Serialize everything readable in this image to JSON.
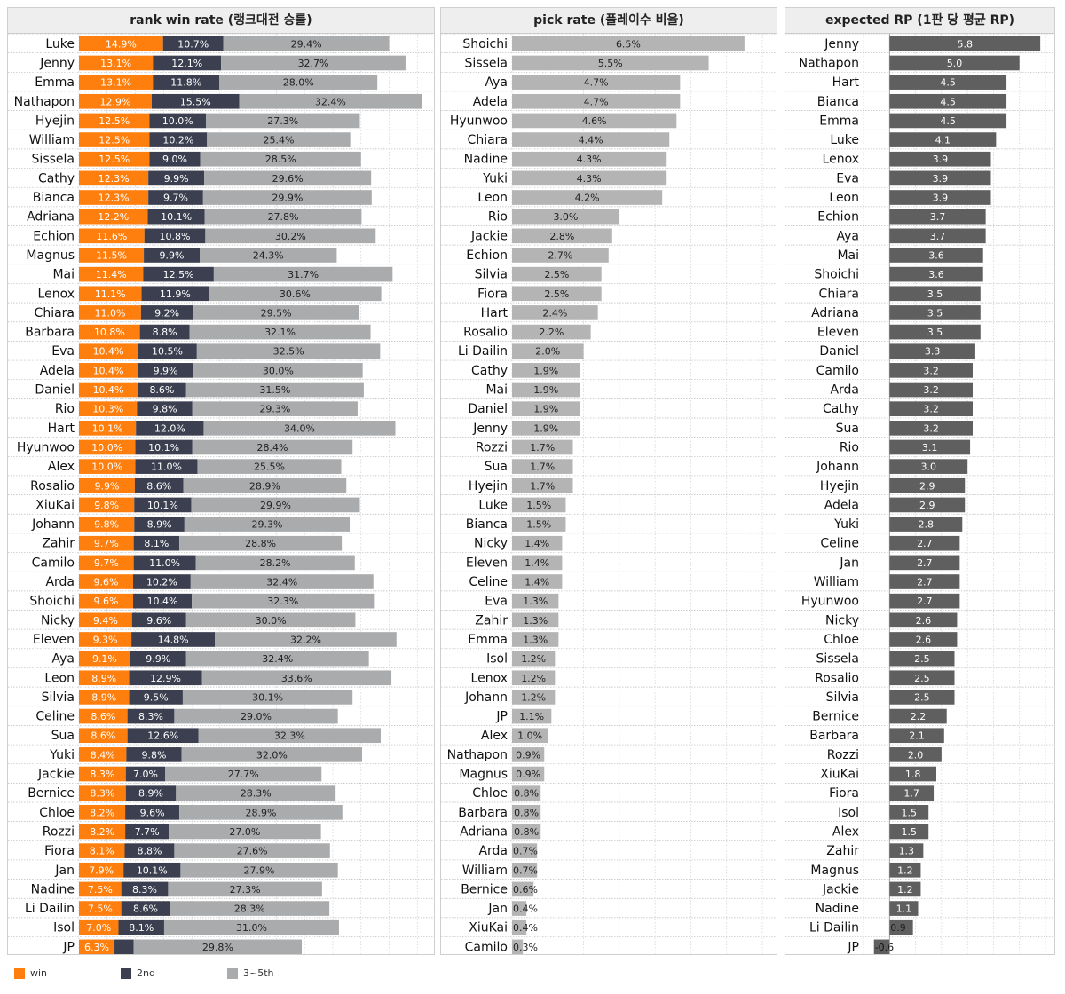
{
  "colors": {
    "win": "#ff7f0e",
    "second": "#3b3f4f",
    "third": "#a9abad",
    "pick": "#b4b4b4",
    "rp": "#5f5f5f"
  },
  "legend": {
    "win": "win",
    "second": "2nd",
    "third": "3~5th"
  },
  "chart_data": [
    {
      "type": "bar",
      "stacked": true,
      "title": "rank win rate (랭크대전 승률)",
      "categories": [
        "Luke",
        "Jenny",
        "Emma",
        "Nathapon",
        "Hyejin",
        "William",
        "Sissela",
        "Cathy",
        "Bianca",
        "Adriana",
        "Echion",
        "Magnus",
        "Mai",
        "Lenox",
        "Chiara",
        "Barbara",
        "Eva",
        "Adela",
        "Daniel",
        "Rio",
        "Hart",
        "Hyunwoo",
        "Alex",
        "Rosalio",
        "XiuKai",
        "Johann",
        "Zahir",
        "Camilo",
        "Arda",
        "Shoichi",
        "Nicky",
        "Eleven",
        "Aya",
        "Leon",
        "Silvia",
        "Celine",
        "Sua",
        "Yuki",
        "Jackie",
        "Bernice",
        "Chloe",
        "Rozzi",
        "Fiora",
        "Jan",
        "Nadine",
        "Li Dailin",
        "Isol",
        "JP"
      ],
      "series": [
        {
          "name": "win",
          "values": [
            14.9,
            13.1,
            13.1,
            12.9,
            12.5,
            12.5,
            12.5,
            12.3,
            12.3,
            12.2,
            11.6,
            11.5,
            11.4,
            11.1,
            11.0,
            10.8,
            10.4,
            10.4,
            10.4,
            10.3,
            10.1,
            10.0,
            10.0,
            9.9,
            9.8,
            9.8,
            9.7,
            9.7,
            9.6,
            9.6,
            9.4,
            9.3,
            9.1,
            8.9,
            8.9,
            8.6,
            8.6,
            8.4,
            8.3,
            8.3,
            8.2,
            8.2,
            8.1,
            7.9,
            7.5,
            7.5,
            7.0,
            6.3
          ]
        },
        {
          "name": "2nd",
          "values": [
            10.7,
            12.1,
            11.8,
            15.5,
            10.0,
            10.2,
            9.0,
            9.9,
            9.7,
            10.1,
            10.8,
            9.9,
            12.5,
            11.9,
            9.2,
            8.8,
            10.5,
            9.9,
            8.6,
            9.8,
            12.0,
            10.1,
            11.0,
            8.6,
            10.1,
            8.9,
            8.1,
            11.0,
            10.2,
            10.4,
            9.6,
            14.8,
            9.9,
            12.9,
            9.5,
            8.3,
            12.6,
            9.8,
            7.0,
            8.9,
            9.6,
            7.7,
            8.8,
            10.1,
            8.3,
            8.6,
            8.1,
            3.4
          ]
        },
        {
          "name": "3~5th",
          "values": [
            29.4,
            32.7,
            28.0,
            32.4,
            27.3,
            25.4,
            28.5,
            29.6,
            29.9,
            27.8,
            30.2,
            24.3,
            31.7,
            30.6,
            29.5,
            32.1,
            32.5,
            30.0,
            31.5,
            29.3,
            34.0,
            28.4,
            25.5,
            28.9,
            29.9,
            29.3,
            28.8,
            28.2,
            32.4,
            32.3,
            30.0,
            32.2,
            32.4,
            33.6,
            30.1,
            29.0,
            32.3,
            32.0,
            27.7,
            28.3,
            28.9,
            27.0,
            27.6,
            27.9,
            27.3,
            28.3,
            31.0,
            29.8
          ]
        }
      ],
      "labels": {
        "win": [
          "14.9%",
          "13.1%",
          "13.1%",
          "12.9%",
          "12.5%",
          "12.5%",
          "12.5%",
          "12.3%",
          "12.3%",
          "12.2%",
          "11.6%",
          "11.5%",
          "11.4%",
          "11.1%",
          "11.0%",
          "10.8%",
          "10.4%",
          "10.4%",
          "10.4%",
          "10.3%",
          "10.1%",
          "10.0%",
          "10.0%",
          "9.9%",
          "9.8%",
          "9.8%",
          "9.7%",
          "9.7%",
          "9.6%",
          "9.6%",
          "9.4%",
          "9.3%",
          "9.1%",
          "8.9%",
          "8.9%",
          "8.6%",
          "8.6%",
          "8.4%",
          "8.3%",
          "8.3%",
          "8.2%",
          "8.2%",
          "8.1%",
          "7.9%",
          "7.5%",
          "7.5%",
          "7.0%",
          "6.3%"
        ],
        "2nd": [
          "10.7%",
          "12.1%",
          "11.8%",
          "15.5%",
          "10.0%",
          "10.2%",
          "9.0%",
          "9.9%",
          "9.7%",
          "10.1%",
          "10.8%",
          "9.9%",
          "12.5%",
          "11.9%",
          "9.2%",
          "8.8%",
          "10.5%",
          "9.9%",
          "8.6%",
          "9.8%",
          "12.0%",
          "10.1%",
          "11.0%",
          "8.6%",
          "10.1%",
          "8.9%",
          "8.1%",
          "11.0%",
          "10.2%",
          "10.4%",
          "9.6%",
          "14.8%",
          "9.9%",
          "12.9%",
          "9.5%",
          "8.3%",
          "12.6%",
          "9.8%",
          "7.0%",
          "8.9%",
          "9.6%",
          "7.7%",
          "8.8%",
          "10.1%",
          "8.3%",
          "8.6%",
          "8.1%",
          ""
        ],
        "3~5th": [
          "29.4%",
          "32.7%",
          "28.0%",
          "32.4%",
          "27.3%",
          "25.4%",
          "28.5%",
          "29.6%",
          "29.9%",
          "27.8%",
          "30.2%",
          "24.3%",
          "31.7%",
          "30.6%",
          "29.5%",
          "32.1%",
          "32.5%",
          "30.0%",
          "31.5%",
          "29.3%",
          "34.0%",
          "28.4%",
          "25.5%",
          "28.9%",
          "29.9%",
          "29.3%",
          "28.8%",
          "28.2%",
          "32.4%",
          "32.3%",
          "30.0%",
          "32.2%",
          "32.4%",
          "33.6%",
          "30.1%",
          "29.0%",
          "32.3%",
          "32.0%",
          "27.7%",
          "28.3%",
          "28.9%",
          "27.0%",
          "27.6%",
          "27.9%",
          "27.3%",
          "28.3%",
          "31.0%",
          "29.8%"
        ]
      },
      "xlim": [
        0,
        62
      ],
      "grid": true,
      "legend_position": "bottom-left"
    },
    {
      "type": "bar",
      "title": "pick rate (플레이수 비율)",
      "categories": [
        "Shoichi",
        "Sissela",
        "Aya",
        "Adela",
        "Hyunwoo",
        "Chiara",
        "Nadine",
        "Yuki",
        "Leon",
        "Rio",
        "Jackie",
        "Echion",
        "Silvia",
        "Fiora",
        "Hart",
        "Rosalio",
        "Li Dailin",
        "Cathy",
        "Mai",
        "Daniel",
        "Jenny",
        "Rozzi",
        "Sua",
        "Hyejin",
        "Luke",
        "Bianca",
        "Nicky",
        "Eleven",
        "Celine",
        "Eva",
        "Zahir",
        "Emma",
        "Isol",
        "Lenox",
        "Johann",
        "JP",
        "Alex",
        "Nathapon",
        "Magnus",
        "Chloe",
        "Barbara",
        "Adriana",
        "Arda",
        "William",
        "Bernice",
        "Jan",
        "XiuKai",
        "Camilo"
      ],
      "values": [
        6.5,
        5.5,
        4.7,
        4.7,
        4.6,
        4.4,
        4.3,
        4.3,
        4.2,
        3.0,
        2.8,
        2.7,
        2.5,
        2.5,
        2.4,
        2.2,
        2.0,
        1.9,
        1.9,
        1.9,
        1.9,
        1.7,
        1.7,
        1.7,
        1.5,
        1.5,
        1.4,
        1.4,
        1.4,
        1.3,
        1.3,
        1.3,
        1.2,
        1.2,
        1.2,
        1.1,
        1.0,
        0.9,
        0.9,
        0.8,
        0.8,
        0.8,
        0.7,
        0.7,
        0.6,
        0.4,
        0.4,
        0.3
      ],
      "labels": [
        "6.5%",
        "5.5%",
        "4.7%",
        "4.7%",
        "4.6%",
        "4.4%",
        "4.3%",
        "4.3%",
        "4.2%",
        "3.0%",
        "2.8%",
        "2.7%",
        "2.5%",
        "2.5%",
        "2.4%",
        "2.2%",
        "2.0%",
        "1.9%",
        "1.9%",
        "1.9%",
        "1.9%",
        "1.7%",
        "1.7%",
        "1.7%",
        "1.5%",
        "1.5%",
        "1.4%",
        "1.4%",
        "1.4%",
        "1.3%",
        "1.3%",
        "1.3%",
        "1.2%",
        "1.2%",
        "1.2%",
        "1.1%",
        "1.0%",
        "0.9%",
        "0.9%",
        "0.8%",
        "0.8%",
        "0.8%",
        "0.7%",
        "0.7%",
        "0.6%",
        "0.4%",
        "0.4%",
        "0.3%"
      ],
      "xlim": [
        0,
        7
      ],
      "grid": true
    },
    {
      "type": "bar",
      "title": "expected RP (1판 당 평균 RP)",
      "categories": [
        "Jenny",
        "Nathapon",
        "Hart",
        "Bianca",
        "Emma",
        "Luke",
        "Lenox",
        "Eva",
        "Leon",
        "Echion",
        "Aya",
        "Mai",
        "Shoichi",
        "Chiara",
        "Adriana",
        "Eleven",
        "Daniel",
        "Camilo",
        "Arda",
        "Cathy",
        "Sua",
        "Rio",
        "Johann",
        "Hyejin",
        "Adela",
        "Yuki",
        "Celine",
        "Jan",
        "William",
        "Hyunwoo",
        "Nicky",
        "Chloe",
        "Sissela",
        "Rosalio",
        "Silvia",
        "Bernice",
        "Barbara",
        "Rozzi",
        "XiuKai",
        "Fiora",
        "Isol",
        "Alex",
        "Zahir",
        "Magnus",
        "Jackie",
        "Nadine",
        "Li Dailin",
        "JP"
      ],
      "values": [
        5.8,
        5.0,
        4.5,
        4.5,
        4.5,
        4.1,
        3.9,
        3.9,
        3.9,
        3.7,
        3.7,
        3.6,
        3.6,
        3.5,
        3.5,
        3.5,
        3.3,
        3.2,
        3.2,
        3.2,
        3.2,
        3.1,
        3.0,
        2.9,
        2.9,
        2.8,
        2.7,
        2.7,
        2.7,
        2.7,
        2.6,
        2.6,
        2.5,
        2.5,
        2.5,
        2.2,
        2.1,
        2.0,
        1.8,
        1.7,
        1.5,
        1.5,
        1.3,
        1.2,
        1.2,
        1.1,
        0.9,
        -0.6
      ],
      "labels": [
        "5.8",
        "5.0",
        "4.5",
        "4.5",
        "4.5",
        "4.1",
        "3.9",
        "3.9",
        "3.9",
        "3.7",
        "3.7",
        "3.6",
        "3.6",
        "3.5",
        "3.5",
        "3.5",
        "3.3",
        "3.2",
        "3.2",
        "3.2",
        "3.2",
        "3.1",
        "3.0",
        "2.9",
        "2.9",
        "2.8",
        "2.7",
        "2.7",
        "2.7",
        "2.7",
        "2.6",
        "2.6",
        "2.5",
        "2.5",
        "2.5",
        "2.2",
        "2.1",
        "2.0",
        "1.8",
        "1.7",
        "1.5",
        "1.5",
        "1.3",
        "1.2",
        "1.2",
        "1.1",
        "0.9",
        "-0.6"
      ],
      "xlim": [
        -1,
        6
      ],
      "grid": true
    }
  ]
}
